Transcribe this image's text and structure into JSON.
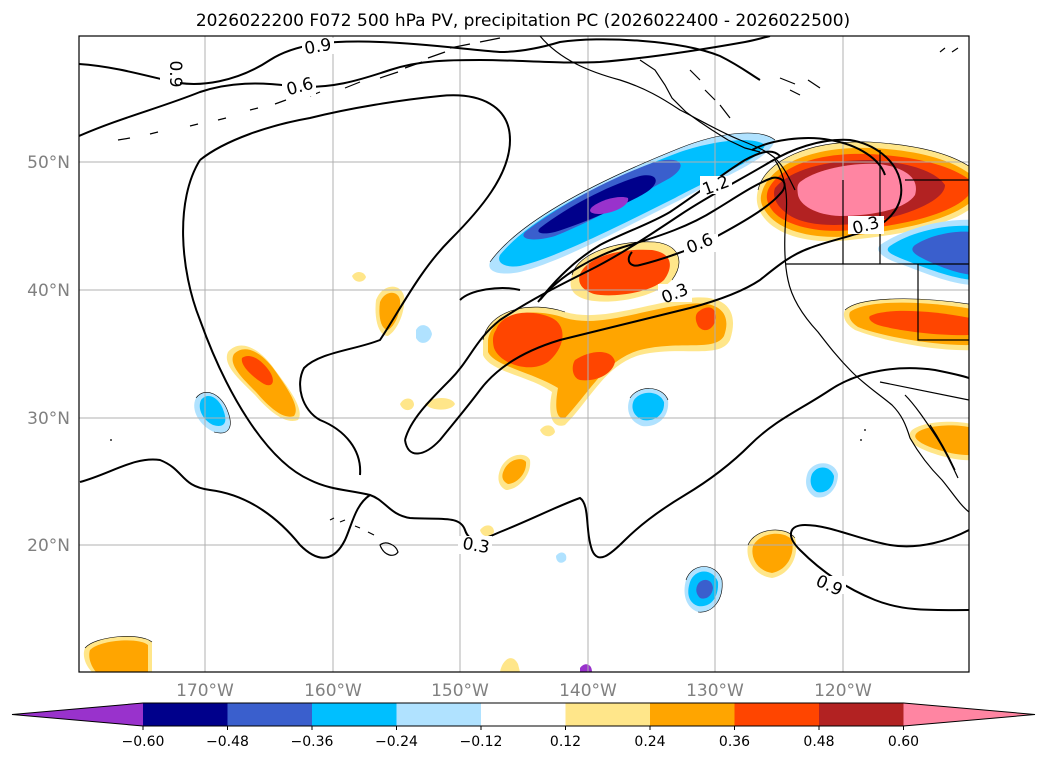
{
  "title": "2026022200 F072 500 hPa PV, precipitation PC (2026022400 - 2026022500)",
  "lat_labels": [
    "50°N",
    "40°N",
    "30°N",
    "20°N"
  ],
  "lon_labels": [
    "170°W",
    "160°W",
    "150°W",
    "140°W",
    "130°W",
    "120°W"
  ],
  "contour_labels": [
    "0.9",
    "0.6",
    "0.9",
    "1.2",
    "0.6",
    "0.3",
    "0.3",
    "0.3",
    "0.9"
  ],
  "colorbar": {
    "ticks": [
      "−0.60",
      "−0.48",
      "−0.36",
      "−0.24",
      "−0.12",
      "0.12",
      "0.24",
      "0.36",
      "0.48",
      "0.60"
    ],
    "colors": [
      "#9932cc",
      "#00008b",
      "#3a5fcd",
      "#00bfff",
      "#b0e2ff",
      "#ffffff",
      "#ffe68a",
      "#ffa500",
      "#ff4500",
      "#b22222",
      "#ff85a2"
    ]
  }
}
